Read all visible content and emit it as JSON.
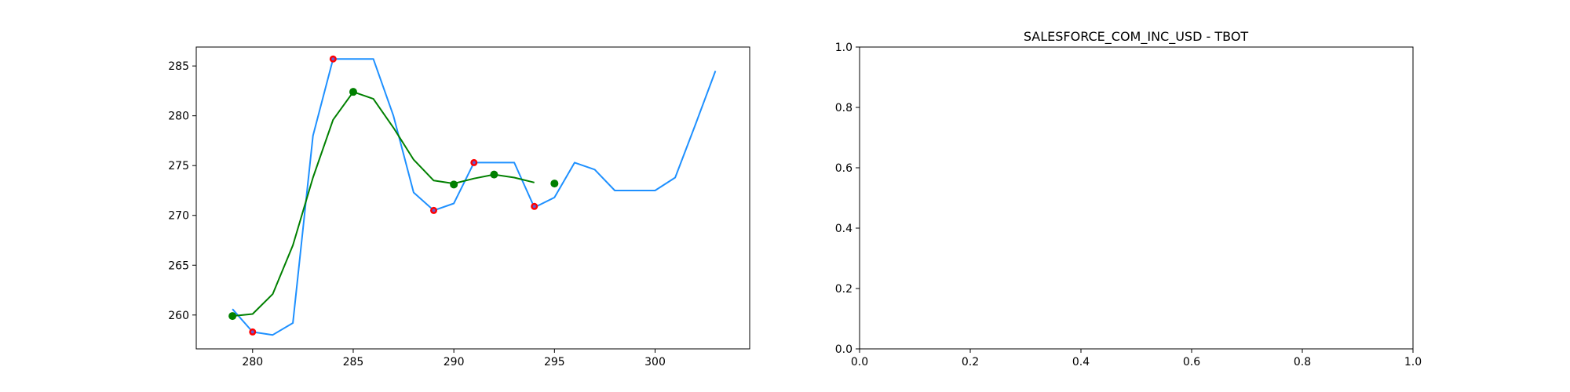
{
  "chart_data": [
    {
      "type": "line",
      "title": "",
      "xlabel": "",
      "ylabel": "",
      "xlim": [
        277.2,
        304.7
      ],
      "ylim": [
        256.6,
        286.9
      ],
      "xticks": [
        280,
        285,
        290,
        295,
        300
      ],
      "yticks": [
        260,
        265,
        270,
        275,
        280,
        285
      ],
      "series": [
        {
          "color": "#1e90ff",
          "x": [
            279,
            280,
            281,
            282,
            283,
            284,
            285,
            286,
            287,
            288,
            289,
            290,
            291,
            292,
            293,
            294,
            295,
            296,
            297,
            298,
            299,
            300,
            301,
            302,
            303
          ],
          "y": [
            260.6,
            258.3,
            258.0,
            259.2,
            278.0,
            285.7,
            285.7,
            285.7,
            280.0,
            272.3,
            270.5,
            271.2,
            275.3,
            275.3,
            275.3,
            270.8,
            271.8,
            275.3,
            274.6,
            272.5,
            272.5,
            272.5,
            273.8,
            279.1,
            284.5
          ]
        },
        {
          "color": "#008000",
          "x": [
            279,
            280,
            281,
            282,
            283,
            284,
            285,
            286,
            287,
            288,
            289,
            290,
            291,
            292,
            293,
            294
          ],
          "y": [
            259.9,
            260.1,
            262.1,
            267.0,
            273.8,
            279.6,
            282.4,
            281.7,
            278.8,
            275.6,
            273.5,
            273.2,
            273.7,
            274.1,
            273.8,
            273.3
          ]
        }
      ],
      "markers_red": {
        "color": "#ff0000",
        "x": [
          280,
          284,
          289,
          291,
          294
        ],
        "y": [
          258.3,
          285.7,
          270.5,
          275.3,
          270.9
        ]
      },
      "markers_green": {
        "color": "#008000",
        "x": [
          279,
          285,
          290,
          292,
          295
        ],
        "y": [
          259.9,
          282.4,
          273.1,
          274.1,
          273.2
        ]
      }
    },
    {
      "type": "line",
      "title": "SALESFORCE_COM_INC_USD - TBOT",
      "xlabel": "",
      "ylabel": "",
      "xlim": [
        0,
        1
      ],
      "ylim": [
        0,
        1
      ],
      "xticks": [
        "0.0",
        "0.2",
        "0.4",
        "0.6",
        "0.8",
        "1.0"
      ],
      "yticks": [
        "0.0",
        "0.2",
        "0.4",
        "0.6",
        "0.8",
        "1.0"
      ],
      "series": []
    }
  ]
}
